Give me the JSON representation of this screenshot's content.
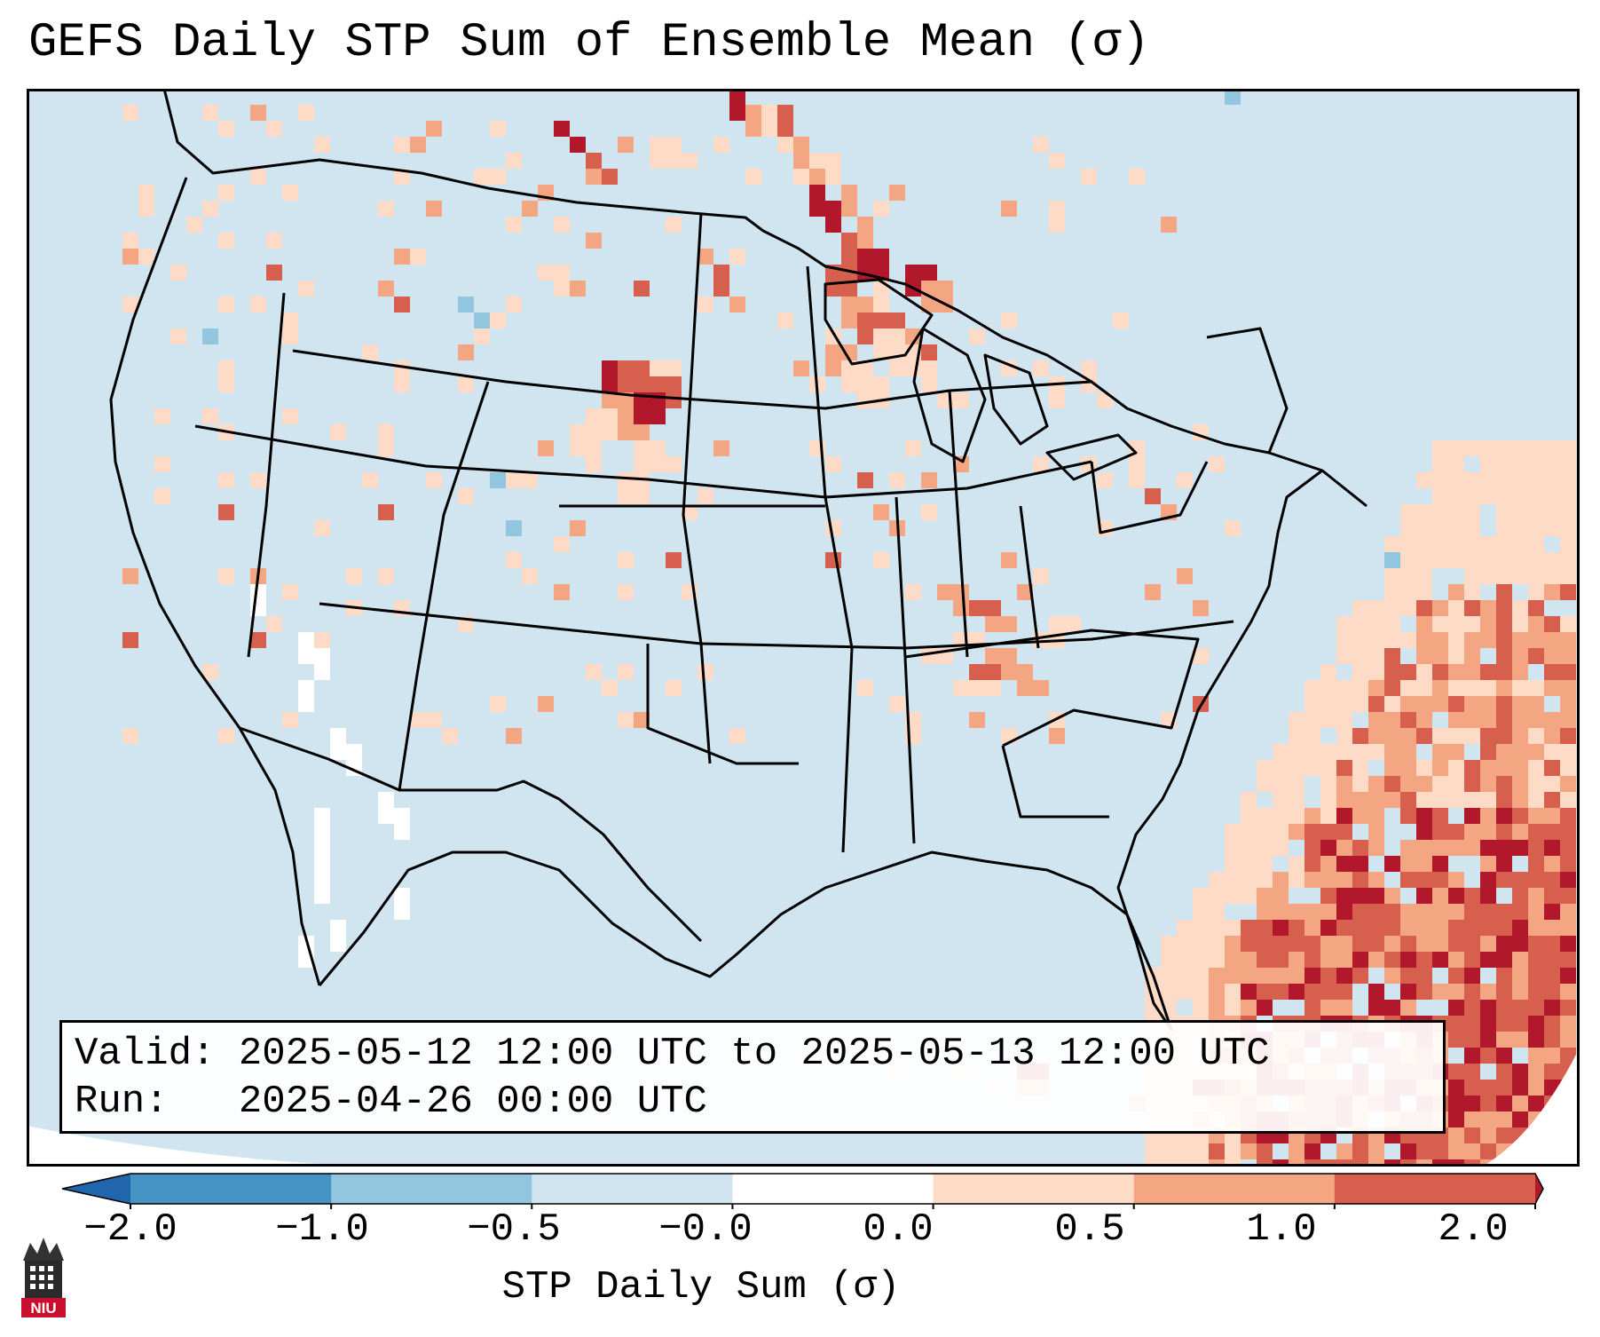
{
  "title": "GEFS Daily STP Sum of Ensemble Mean (σ)",
  "info": {
    "valid_label": "Valid:",
    "valid_value": "2025-05-12 12:00 UTC to 2025-05-13 12:00 UTC",
    "run_label": "Run:",
    "run_value": "2025-04-26 00:00 UTC"
  },
  "colorbar": {
    "label": "STP Daily Sum (σ)",
    "ticks": [
      "−2.0",
      "−1.0",
      "−0.5",
      "−0.0",
      "0.0",
      "0.5",
      "1.0",
      "2.0"
    ],
    "bins": [
      {
        "from": -2.0,
        "to": -1.0,
        "color": "#4393c3"
      },
      {
        "from": -1.0,
        "to": -0.5,
        "color": "#92c5de"
      },
      {
        "from": -0.5,
        "to": -0.0,
        "color": "#d1e5f0"
      },
      {
        "from": -0.0,
        "to": 0.0,
        "color": "#ffffff"
      },
      {
        "from": 0.0,
        "to": 0.5,
        "color": "#fddbc7"
      },
      {
        "from": 0.5,
        "to": 1.0,
        "color": "#f4a582"
      },
      {
        "from": 1.0,
        "to": 2.0,
        "color": "#d6604d"
      }
    ],
    "under_color": "#2166ac",
    "over_color": "#b2182b"
  },
  "map": {
    "background_color": "#d1e5f0",
    "border_color": "#000000"
  },
  "logo": {
    "text": "NIU",
    "color": "#c8102e"
  }
}
